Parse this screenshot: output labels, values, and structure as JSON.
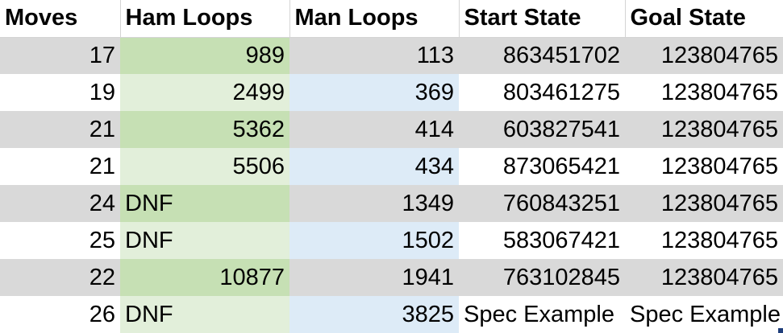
{
  "columns": [
    "Moves",
    "Ham Loops",
    "Man Loops",
    "Start State",
    "Goal State"
  ],
  "rows": [
    {
      "moves": "17",
      "ham": "989",
      "man": "113",
      "start": "863451702",
      "goal": "123804765"
    },
    {
      "moves": "19",
      "ham": "2499",
      "man": "369",
      "start": "803461275",
      "goal": "123804765"
    },
    {
      "moves": "21",
      "ham": "5362",
      "man": "414",
      "start": "603827541",
      "goal": "123804765"
    },
    {
      "moves": "21",
      "ham": "5506",
      "man": "434",
      "start": "873065421",
      "goal": "123804765"
    },
    {
      "moves": "24",
      "ham": "DNF",
      "man": "1349",
      "start": "760843251",
      "goal": "123804765"
    },
    {
      "moves": "25",
      "ham": "DNF",
      "man": "1502",
      "start": "583067421",
      "goal": "123804765"
    },
    {
      "moves": "22",
      "ham": "10877",
      "man": "1941",
      "start": "763102845",
      "goal": "123804765"
    },
    {
      "moves": "26",
      "ham": "DNF",
      "man": "3825",
      "start": "Spec Example",
      "goal": "Spec Example"
    }
  ],
  "colors": {
    "header_bg": "#ffffff",
    "band_gray": "#d9d9d9",
    "ham_dark": "#c6e0b4",
    "ham_light": "#e2efda",
    "man_light": "#ddebf7"
  }
}
